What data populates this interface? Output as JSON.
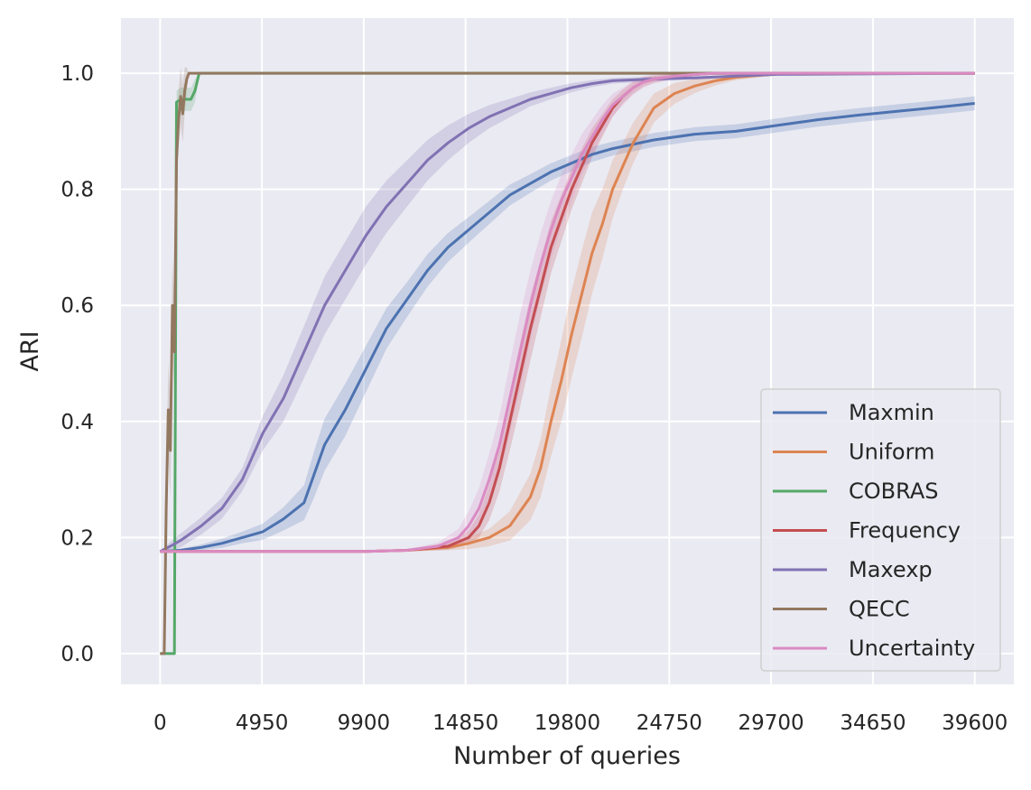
{
  "chart_data": {
    "type": "line",
    "title": "",
    "xlabel": "Number of queries",
    "ylabel": "ARI",
    "xlim": [
      -1900,
      41500
    ],
    "ylim": [
      -0.053,
      1.095
    ],
    "xticks": [
      0,
      4950,
      9900,
      14850,
      19800,
      24750,
      29700,
      34650,
      39600
    ],
    "xtick_labels": [
      "0",
      "4950",
      "9900",
      "14850",
      "19800",
      "24750",
      "29700",
      "34650",
      "39600"
    ],
    "yticks": [
      0.0,
      0.2,
      0.4,
      0.6,
      0.8,
      1.0
    ],
    "ytick_labels": [
      "0.0",
      "0.2",
      "0.4",
      "0.6",
      "0.8",
      "1.0"
    ],
    "grid": true,
    "legend_position": "lower-right",
    "series": [
      {
        "name": "Maxmin",
        "color": "#4c72b0",
        "x": [
          0,
          1000,
          2000,
          3000,
          4000,
          5000,
          6000,
          7000,
          7500,
          8000,
          9000,
          10000,
          11000,
          12000,
          13000,
          14000,
          15000,
          16000,
          17000,
          18000,
          19000,
          20000,
          21000,
          22000,
          24000,
          26000,
          28000,
          30000,
          32000,
          34000,
          36000,
          38000,
          39600
        ],
        "y": [
          0.176,
          0.178,
          0.183,
          0.19,
          0.2,
          0.21,
          0.232,
          0.26,
          0.31,
          0.36,
          0.42,
          0.49,
          0.56,
          0.61,
          0.66,
          0.7,
          0.73,
          0.76,
          0.79,
          0.81,
          0.83,
          0.845,
          0.86,
          0.87,
          0.885,
          0.895,
          0.9,
          0.91,
          0.92,
          0.928,
          0.935,
          0.942,
          0.948
        ],
        "band": [
          0.002,
          0.003,
          0.005,
          0.008,
          0.01,
          0.014,
          0.02,
          0.03,
          0.04,
          0.045,
          0.045,
          0.04,
          0.035,
          0.03,
          0.028,
          0.025,
          0.022,
          0.02,
          0.018,
          0.016,
          0.015,
          0.014,
          0.013,
          0.012,
          0.012,
          0.012,
          0.012,
          0.012,
          0.012,
          0.012,
          0.012,
          0.012,
          0.012
        ]
      },
      {
        "name": "Uniform",
        "color": "#dd8452",
        "x": [
          0,
          5000,
          10000,
          12000,
          14000,
          15000,
          16000,
          17000,
          18000,
          18500,
          19000,
          19500,
          20000,
          20500,
          21000,
          21500,
          22000,
          22500,
          23000,
          23500,
          24000,
          25000,
          26000,
          27000,
          28000,
          29000,
          29700,
          30000,
          39600
        ],
        "y": [
          0.176,
          0.176,
          0.176,
          0.178,
          0.183,
          0.19,
          0.2,
          0.22,
          0.27,
          0.32,
          0.4,
          0.47,
          0.55,
          0.62,
          0.69,
          0.74,
          0.8,
          0.84,
          0.88,
          0.91,
          0.94,
          0.965,
          0.978,
          0.987,
          0.993,
          0.996,
          0.998,
          1.0,
          1.0
        ],
        "band": [
          0.0,
          0.0,
          0.0,
          0.002,
          0.005,
          0.01,
          0.015,
          0.025,
          0.04,
          0.05,
          0.06,
          0.07,
          0.075,
          0.075,
          0.07,
          0.06,
          0.05,
          0.04,
          0.035,
          0.03,
          0.025,
          0.018,
          0.012,
          0.008,
          0.005,
          0.004,
          0.003,
          0.0,
          0.0
        ]
      },
      {
        "name": "COBRAS",
        "color": "#55a868",
        "x": [
          0,
          400,
          700,
          800,
          1000,
          1500,
          1700,
          1900,
          39600
        ],
        "y": [
          0.0,
          0.0,
          0.0,
          0.95,
          0.955,
          0.955,
          0.97,
          1.0,
          1.0
        ],
        "band": [
          0.0,
          0.0,
          0.0,
          0.02,
          0.02,
          0.02,
          0.02,
          0.0,
          0.0
        ]
      },
      {
        "name": "Frequency",
        "color": "#c44e52",
        "x": [
          0,
          5000,
          10000,
          12000,
          14000,
          15000,
          15500,
          16000,
          16500,
          17000,
          17500,
          18000,
          18500,
          19000,
          19500,
          20000,
          20500,
          21000,
          21500,
          22000,
          22500,
          23000,
          23500,
          24000,
          25000,
          26000,
          27000,
          28000,
          39600
        ],
        "y": [
          0.176,
          0.176,
          0.176,
          0.178,
          0.185,
          0.2,
          0.22,
          0.26,
          0.32,
          0.4,
          0.48,
          0.56,
          0.63,
          0.7,
          0.75,
          0.8,
          0.84,
          0.88,
          0.91,
          0.94,
          0.96,
          0.975,
          0.985,
          0.99,
          0.995,
          0.998,
          1.0,
          1.0,
          1.0
        ],
        "band": [
          0.0,
          0.0,
          0.0,
          0.002,
          0.006,
          0.012,
          0.02,
          0.03,
          0.04,
          0.05,
          0.055,
          0.055,
          0.05,
          0.045,
          0.04,
          0.035,
          0.03,
          0.025,
          0.02,
          0.015,
          0.012,
          0.01,
          0.008,
          0.006,
          0.004,
          0.002,
          0.0,
          0.0,
          0.0
        ]
      },
      {
        "name": "Maxexp",
        "color": "#8172b3",
        "x": [
          0,
          500,
          1000,
          2000,
          3000,
          4000,
          5000,
          6000,
          7000,
          8000,
          9000,
          10000,
          11000,
          12000,
          13000,
          14000,
          15000,
          16000,
          17000,
          18000,
          19000,
          20000,
          21000,
          22000,
          24000,
          26000,
          28000,
          30000,
          39600
        ],
        "y": [
          0.176,
          0.185,
          0.195,
          0.22,
          0.25,
          0.3,
          0.38,
          0.44,
          0.52,
          0.6,
          0.66,
          0.72,
          0.77,
          0.81,
          0.85,
          0.88,
          0.905,
          0.925,
          0.94,
          0.955,
          0.965,
          0.975,
          0.982,
          0.987,
          0.99,
          0.992,
          0.995,
          0.998,
          1.0
        ],
        "band": [
          0.0,
          0.008,
          0.012,
          0.015,
          0.018,
          0.02,
          0.03,
          0.04,
          0.045,
          0.05,
          0.05,
          0.05,
          0.045,
          0.04,
          0.035,
          0.03,
          0.025,
          0.02,
          0.016,
          0.012,
          0.01,
          0.008,
          0.006,
          0.005,
          0.004,
          0.003,
          0.002,
          0.001,
          0.0
        ]
      },
      {
        "name": "QECC",
        "color": "#937860",
        "x": [
          0,
          200,
          300,
          400,
          500,
          600,
          700,
          800,
          900,
          1000,
          1100,
          1200,
          1300,
          1400,
          39600
        ],
        "y": [
          0.0,
          0.0,
          0.25,
          0.42,
          0.35,
          0.6,
          0.52,
          0.85,
          0.92,
          0.96,
          0.93,
          0.97,
          0.99,
          1.0,
          1.0
        ],
        "band": [
          0.0,
          0.0,
          0.05,
          0.08,
          0.08,
          0.08,
          0.07,
          0.06,
          0.05,
          0.05,
          0.05,
          0.04,
          0.02,
          0.0,
          0.0
        ]
      },
      {
        "name": "Uncertainty",
        "color": "#da8bc3",
        "x": [
          0,
          5000,
          10000,
          12000,
          13500,
          14500,
          15000,
          15500,
          16000,
          16500,
          17000,
          17500,
          18000,
          18500,
          19000,
          19500,
          20000,
          20500,
          21000,
          21500,
          22000,
          22500,
          23000,
          23500,
          24000,
          25000,
          26000,
          27000,
          28000,
          39600
        ],
        "y": [
          0.176,
          0.176,
          0.176,
          0.178,
          0.185,
          0.2,
          0.22,
          0.25,
          0.3,
          0.36,
          0.44,
          0.52,
          0.6,
          0.67,
          0.73,
          0.78,
          0.82,
          0.86,
          0.89,
          0.92,
          0.945,
          0.96,
          0.975,
          0.985,
          0.99,
          0.995,
          0.998,
          1.0,
          1.0,
          1.0
        ],
        "band": [
          0.0,
          0.0,
          0.0,
          0.002,
          0.006,
          0.015,
          0.025,
          0.035,
          0.045,
          0.05,
          0.06,
          0.065,
          0.06,
          0.055,
          0.05,
          0.045,
          0.04,
          0.035,
          0.03,
          0.025,
          0.02,
          0.015,
          0.012,
          0.01,
          0.008,
          0.005,
          0.003,
          0.0,
          0.0,
          0.0
        ]
      }
    ]
  }
}
